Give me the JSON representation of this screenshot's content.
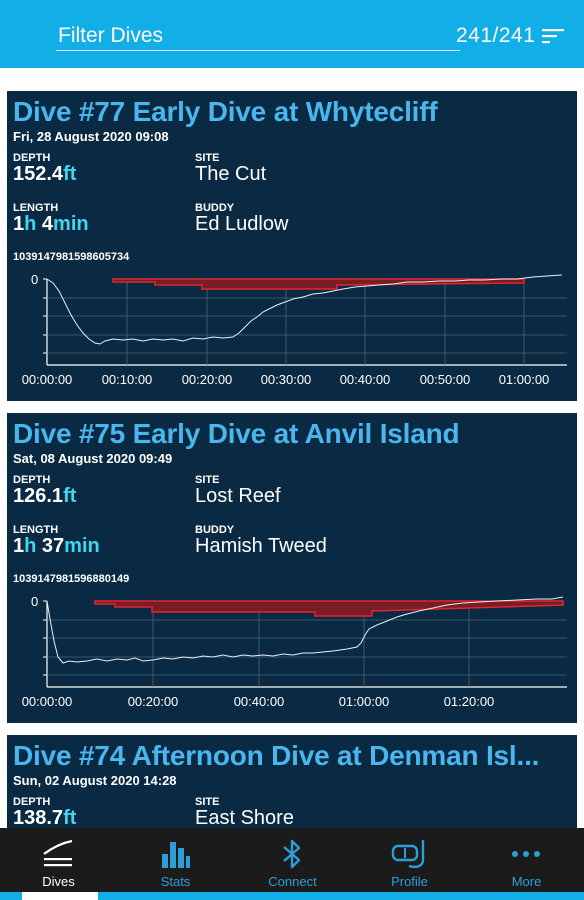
{
  "header": {
    "filter_label": "Filter Dives",
    "count": "241/241",
    "sort_icon": "sort-lines-icon"
  },
  "dives": [
    {
      "title": "Dive #77 Early Dive at Whytecliff",
      "date": "Fri, 28 August 2020 09:08",
      "depth_label": "DEPTH",
      "depth_value": "152.4",
      "depth_unit": "ft",
      "site_label": "SITE",
      "site": "The Cut",
      "length_label": "LENGTH",
      "length_h": "1",
      "length_h_unit": "h",
      "length_m": "4",
      "length_m_unit": "min",
      "buddy_label": "BUDDY",
      "buddy": "Ed Ludlow",
      "id": "1039147981598605734",
      "chart_y_label": "0",
      "chart_x_labels": [
        "00:00:00",
        "00:10:00",
        "00:20:00",
        "00:30:00",
        "00:40:00",
        "00:50:00",
        "01:00:00"
      ]
    },
    {
      "title": "Dive #75 Early Dive at Anvil Island",
      "date": "Sat, 08 August 2020 09:49",
      "depth_label": "DEPTH",
      "depth_value": "126.1",
      "depth_unit": "ft",
      "site_label": "SITE",
      "site": "Lost Reef",
      "length_label": "LENGTH",
      "length_h": "1",
      "length_h_unit": "h",
      "length_m": "37",
      "length_m_unit": "min",
      "buddy_label": "BUDDY",
      "buddy": "Hamish Tweed",
      "id": "1039147981596880149",
      "chart_y_label": "0",
      "chart_x_labels": [
        "00:00:00",
        "00:20:00",
        "00:40:00",
        "01:00:00",
        "01:20:00"
      ]
    },
    {
      "title": "Dive #74 Afternoon Dive at Denman Isl...",
      "date": "Sun, 02 August 2020 14:28",
      "depth_label": "DEPTH",
      "depth_value": "138.7",
      "depth_unit": "ft",
      "site_label": "SITE",
      "site": "East Shore"
    }
  ],
  "nav": {
    "items": [
      {
        "label": "Dives",
        "icon": "dive-profile-icon",
        "active": true
      },
      {
        "label": "Stats",
        "icon": "bar-chart-icon",
        "active": false
      },
      {
        "label": "Connect",
        "icon": "bluetooth-icon",
        "active": false
      },
      {
        "label": "Profile",
        "icon": "mask-snorkel-icon",
        "active": false
      },
      {
        "label": "More",
        "icon": "more-dots-icon",
        "active": false
      }
    ]
  },
  "colors": {
    "top_bar": "#11aee8",
    "card_bg": "#0a2a44",
    "title": "#49b6ee",
    "unit": "#3ed7ee",
    "deco_fill": "#7a1c26",
    "deco_line": "#e0262e",
    "nav_bg": "#1b1b1b",
    "nav_label": "#2d9fd6"
  }
}
